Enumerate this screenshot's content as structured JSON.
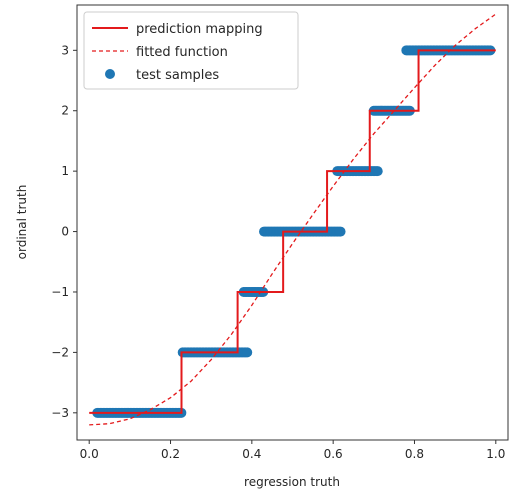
{
  "chart_data": {
    "type": "line",
    "xlabel": "regression truth",
    "ylabel": "ordinal truth",
    "xlim": [
      -0.03,
      1.03
    ],
    "ylim": [
      -3.45,
      3.75
    ],
    "xticks": [
      0.0,
      0.2,
      0.4,
      0.6,
      0.8,
      1.0
    ],
    "xtick_labels": [
      "0.0",
      "0.2",
      "0.4",
      "0.6",
      "0.8",
      "1.0"
    ],
    "yticks": [
      -3,
      -2,
      -1,
      0,
      1,
      2,
      3
    ],
    "ytick_labels": [
      "−3",
      "−2",
      "−1",
      "0",
      "1",
      "2",
      "3"
    ],
    "grid": false,
    "legend_position": "top-left",
    "legend": [
      {
        "label": "prediction mapping",
        "style": "solid-line",
        "color": "#e31a1c"
      },
      {
        "label": "fitted function",
        "style": "dashed-line",
        "color": "#e31a1c"
      },
      {
        "label": "test samples",
        "style": "marker",
        "color": "#1f77b4"
      }
    ],
    "series": [
      {
        "name": "prediction mapping",
        "kind": "step",
        "color": "#e31a1c",
        "x": [
          0.0,
          0.227,
          0.227,
          0.365,
          0.365,
          0.477,
          0.477,
          0.585,
          0.585,
          0.69,
          0.69,
          0.81,
          0.81,
          1.0
        ],
        "y": [
          -3,
          -3,
          -2,
          -2,
          -1,
          -1,
          0,
          0,
          1,
          1,
          2,
          2,
          3,
          3
        ]
      },
      {
        "name": "fitted function",
        "kind": "curve",
        "color": "#e31a1c",
        "x": [
          0.0,
          0.05,
          0.1,
          0.15,
          0.2,
          0.25,
          0.3,
          0.35,
          0.4,
          0.45,
          0.5,
          0.55,
          0.6,
          0.65,
          0.7,
          0.75,
          0.8,
          0.85,
          0.9,
          0.95,
          1.0
        ],
        "y": [
          -3.2,
          -3.18,
          -3.1,
          -2.95,
          -2.75,
          -2.48,
          -2.12,
          -1.7,
          -1.22,
          -0.7,
          -0.2,
          0.28,
          0.75,
          1.2,
          1.62,
          2.0,
          2.38,
          2.75,
          3.08,
          3.36,
          3.6
        ]
      },
      {
        "name": "test samples",
        "kind": "scatter",
        "color": "#1f77b4",
        "segments": [
          {
            "x": [
              0.02,
              0.23
            ],
            "y": -3
          },
          {
            "x": [
              0.23,
              0.39
            ],
            "y": -2
          },
          {
            "x": [
              0.38,
              0.43
            ],
            "y": -1
          },
          {
            "x": [
              0.43,
              0.62
            ],
            "y": 0
          },
          {
            "x": [
              0.61,
              0.71
            ],
            "y": 1
          },
          {
            "x": [
              0.7,
              0.79
            ],
            "y": 2
          },
          {
            "x": [
              0.78,
              0.99
            ],
            "y": 3
          }
        ]
      }
    ]
  }
}
